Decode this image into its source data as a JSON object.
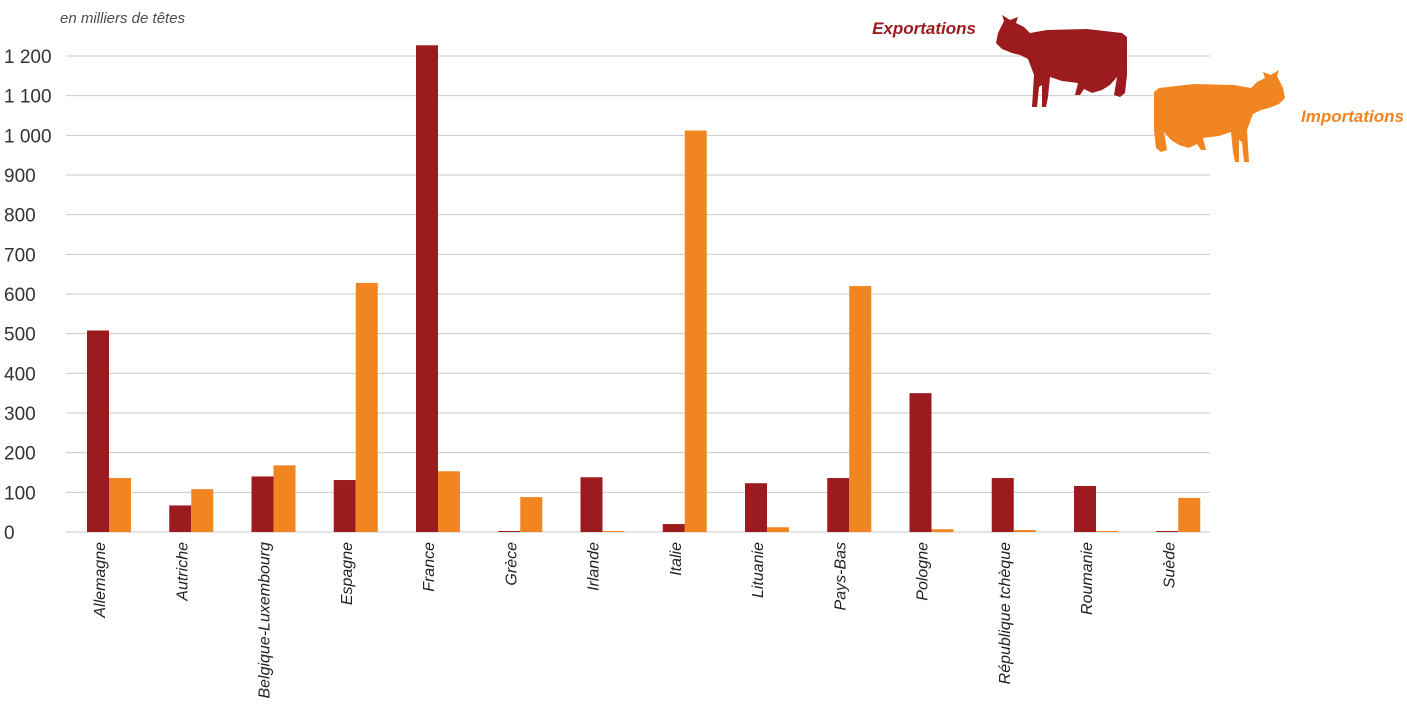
{
  "chart_data": {
    "type": "bar",
    "unit_label": "en milliers de têtes",
    "categories": [
      "Allemagne",
      "Autriche",
      "Belgique-Luxembourg",
      "Espagne",
      "France",
      "Grèce",
      "Irlande",
      "Italie",
      "Lituanie",
      "Pays-Bas",
      "Pologne",
      "République tchèque",
      "Roumanie",
      "Suède"
    ],
    "series": [
      {
        "name": "Exportations",
        "color": "#9b1b1f",
        "values": [
          508,
          67,
          140,
          131,
          1227,
          1,
          138,
          20,
          123,
          136,
          350,
          136,
          116,
          1
        ]
      },
      {
        "name": "Importations",
        "color": "#f08522",
        "values": [
          136,
          108,
          168,
          628,
          153,
          88,
          2,
          1012,
          12,
          620,
          7,
          5,
          2,
          86
        ]
      }
    ],
    "ylim": [
      0,
      1200
    ],
    "yticks": [
      0,
      100,
      200,
      300,
      400,
      500,
      600,
      700,
      800,
      900,
      1000,
      1100,
      1200
    ],
    "ytick_labels": [
      "0",
      "100",
      "200",
      "300",
      "400",
      "500",
      "600",
      "700",
      "800",
      "900",
      "1 000",
      "1 100",
      "1 200"
    ],
    "grid": true,
    "legend": "top-right",
    "legend_icons": [
      "cow-icon",
      "cow-icon"
    ]
  }
}
